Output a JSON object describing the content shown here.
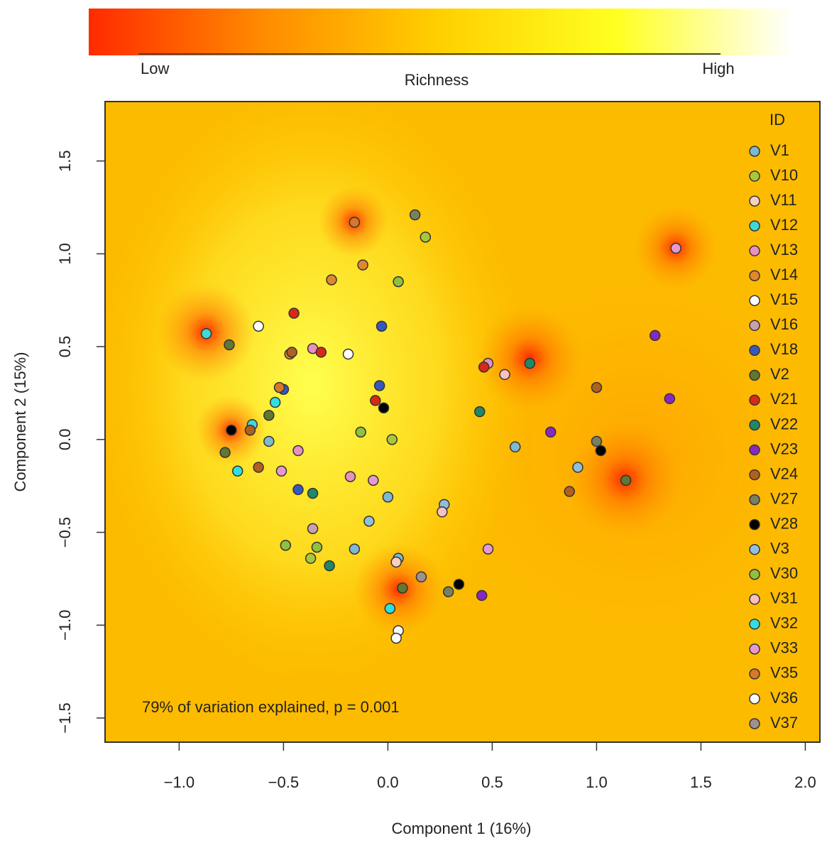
{
  "chart_data": {
    "type": "scatter",
    "xlabel": "Component 1 (16%)",
    "ylabel": "Component 2 (15%)",
    "annotation": "79%  of variation explained, p = 0.001",
    "colorbar": {
      "label": "Richness",
      "low_label": "Low",
      "high_label": "High",
      "colors": [
        "#ff2a00",
        "#ff8c00",
        "#ffd000",
        "#ffff20",
        "#ffffff"
      ]
    },
    "legend_title": "ID",
    "legend_position": "right",
    "xlim": [
      -1.355,
      2.07
    ],
    "ylim": [
      -1.63,
      1.82
    ],
    "xticks": [
      {
        "value": -1,
        "label": "−1.0"
      },
      {
        "value": -0.5,
        "label": "−0.5"
      },
      {
        "value": 0,
        "label": "0.0"
      },
      0.5,
      {
        "value": 1,
        "label": "1.0"
      },
      1.5,
      {
        "value": 2,
        "label": "2.0"
      }
    ],
    "yticks": [
      {
        "value": -1.5,
        "label": "−1.5"
      },
      {
        "value": -1,
        "label": "−1.0"
      },
      {
        "value": -0.5,
        "label": "−0.5"
      },
      {
        "value": 0,
        "label": "0.0"
      },
      0.5,
      {
        "value": 1,
        "label": "1.0"
      },
      1.5
    ],
    "series": [
      {
        "name": "V1",
        "color": "#7fb8d0",
        "x": [
          -0.57,
          -0.16,
          0.0,
          0.05,
          0.61
        ],
        "y": [
          -0.01,
          -0.59,
          -0.31,
          -0.64,
          -0.04
        ]
      },
      {
        "name": "V10",
        "color": "#a8c83a",
        "x": [
          0.18,
          0.02,
          -0.37
        ],
        "y": [
          1.09,
          0.0,
          -0.64
        ]
      },
      {
        "name": "V11",
        "color": "#f8d0c0",
        "x": [
          0.04
        ],
        "y": [
          -0.66
        ]
      },
      {
        "name": "V12",
        "color": "#40d8d8",
        "x": [
          -0.87,
          -0.65
        ],
        "y": [
          0.57,
          0.08
        ]
      },
      {
        "name": "V13",
        "color": "#e890c0",
        "x": [
          -0.36,
          -0.43,
          -0.18,
          0.48
        ],
        "y": [
          0.49,
          -0.06,
          -0.2,
          0.41
        ]
      },
      {
        "name": "V14",
        "color": "#e08830",
        "x": [
          -0.27,
          -0.12,
          -0.47
        ],
        "y": [
          0.86,
          0.94,
          0.46
        ]
      },
      {
        "name": "V15",
        "color": "#ffffff",
        "x": [
          -0.62,
          0.05
        ],
        "y": [
          0.61,
          -1.03
        ]
      },
      {
        "name": "V16",
        "color": "#c8a0b0",
        "x": [
          -0.36
        ],
        "y": [
          -0.48
        ]
      },
      {
        "name": "V18",
        "color": "#3858c0",
        "x": [
          -0.03,
          -0.5,
          -0.43,
          -0.04
        ],
        "y": [
          0.61,
          0.27,
          -0.27,
          0.29
        ]
      },
      {
        "name": "V2",
        "color": "#607830",
        "x": [
          -0.76,
          -0.57,
          -0.78,
          0.07,
          1.14
        ],
        "y": [
          0.51,
          0.13,
          -0.07,
          -0.8,
          -0.22
        ]
      },
      {
        "name": "V21",
        "color": "#d82818",
        "x": [
          -0.45,
          -0.32,
          -0.06,
          0.46
        ],
        "y": [
          0.68,
          0.47,
          0.21,
          0.39
        ]
      },
      {
        "name": "V22",
        "color": "#208868",
        "x": [
          -0.36,
          -0.28,
          0.68,
          0.44
        ],
        "y": [
          -0.29,
          -0.68,
          0.41,
          0.15
        ]
      },
      {
        "name": "V23",
        "color": "#8828c0",
        "x": [
          0.45,
          0.78,
          1.28,
          1.35
        ],
        "y": [
          -0.84,
          0.04,
          0.56,
          0.22
        ]
      },
      {
        "name": "V24",
        "color": "#b06020",
        "x": [
          -0.46,
          -0.66,
          -0.62,
          1.0,
          0.87
        ],
        "y": [
          0.47,
          0.05,
          -0.15,
          0.28,
          -0.28
        ]
      },
      {
        "name": "V27",
        "color": "#788060",
        "x": [
          0.13,
          0.29,
          1.0
        ],
        "y": [
          1.21,
          -0.82,
          -0.01
        ]
      },
      {
        "name": "V28",
        "color": "#000000",
        "x": [
          -0.75,
          -0.02,
          0.34,
          1.02
        ],
        "y": [
          0.05,
          0.17,
          -0.78,
          -0.06
        ]
      },
      {
        "name": "V3",
        "color": "#90c0d8",
        "x": [
          -0.09,
          0.27,
          0.91
        ],
        "y": [
          -0.44,
          -0.35,
          -0.15
        ]
      },
      {
        "name": "V30",
        "color": "#90c040",
        "x": [
          0.05,
          -0.49,
          -0.34,
          -0.13
        ],
        "y": [
          0.85,
          -0.57,
          -0.58,
          0.04
        ]
      },
      {
        "name": "V31",
        "color": "#f8c0c0",
        "x": [
          0.26,
          0.56
        ],
        "y": [
          -0.39,
          0.35
        ]
      },
      {
        "name": "V32",
        "color": "#30e0e0",
        "x": [
          -0.54,
          -0.72,
          0.01
        ],
        "y": [
          0.2,
          -0.17,
          -0.91
        ]
      },
      {
        "name": "V33",
        "color": "#e898d0",
        "x": [
          -0.51,
          -0.07,
          0.48,
          1.38
        ],
        "y": [
          -0.17,
          -0.22,
          -0.59,
          1.03
        ]
      },
      {
        "name": "V35",
        "color": "#d87828",
        "x": [
          -0.16,
          -0.52
        ],
        "y": [
          1.17,
          0.28
        ]
      },
      {
        "name": "V36",
        "color": "#ffffff",
        "x": [
          -0.19,
          0.04
        ],
        "y": [
          0.46,
          -1.07
        ]
      },
      {
        "name": "V37",
        "color": "#a09090",
        "x": [
          0.16
        ],
        "y": [
          -0.74
        ]
      }
    ]
  }
}
